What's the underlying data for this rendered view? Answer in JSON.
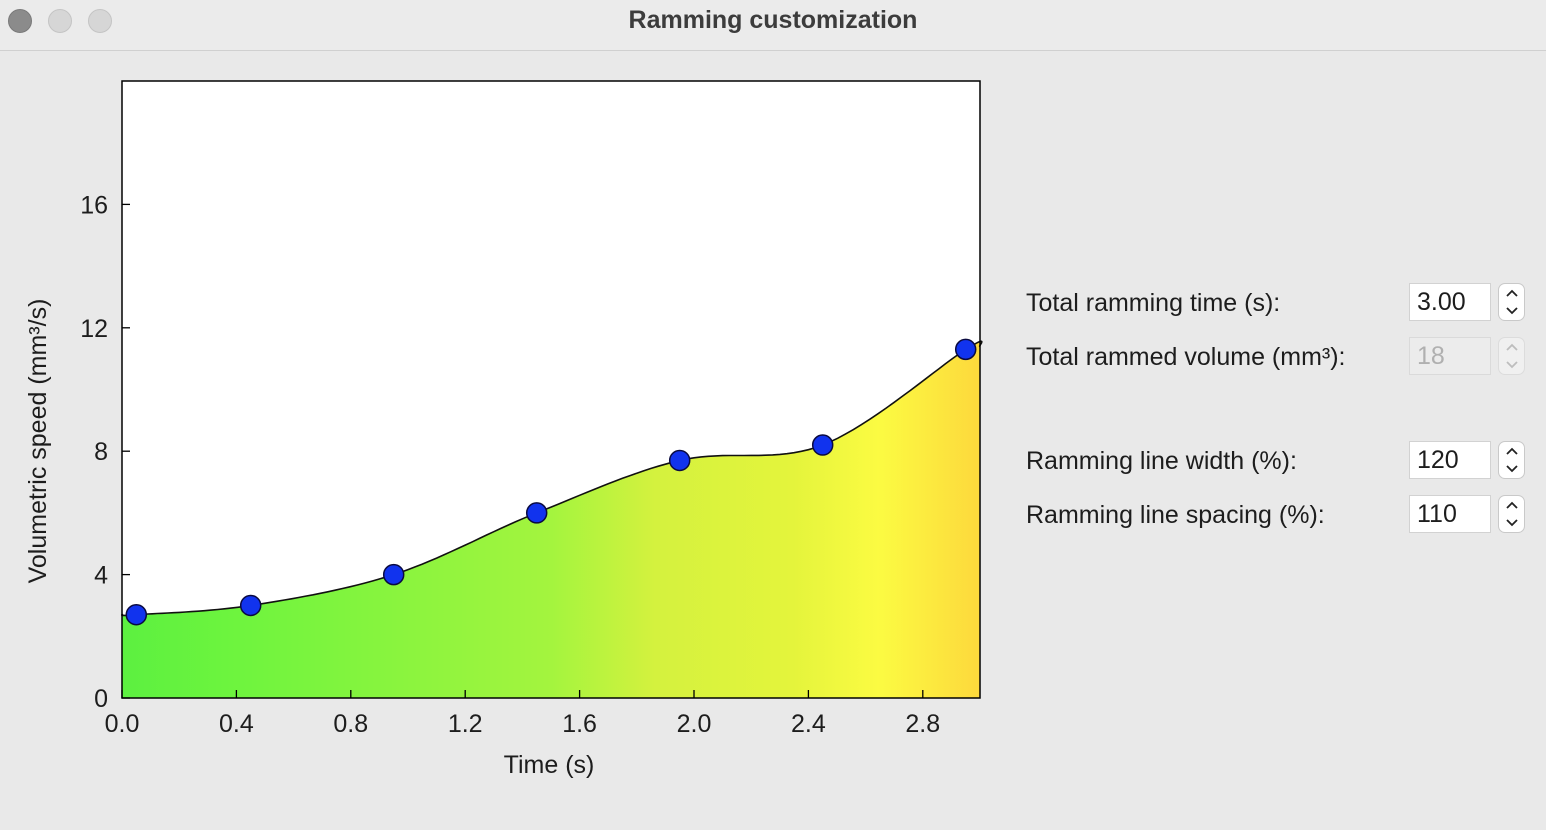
{
  "window": {
    "title": "Ramming customization"
  },
  "chart_data": {
    "type": "area",
    "xlabel": "Time (s)",
    "ylabel": "Volumetric speed (mm³/s)",
    "xlim": [
      0,
      3.0
    ],
    "ylim": [
      0,
      20
    ],
    "x_ticks": [
      "0.0",
      "0.4",
      "0.8",
      "1.2",
      "1.6",
      "2.0",
      "2.4",
      "2.8"
    ],
    "y_ticks": [
      "0",
      "4",
      "8",
      "12",
      "16"
    ],
    "x": [
      0.05,
      0.45,
      0.95,
      1.45,
      1.95,
      2.45,
      2.95
    ],
    "values": [
      2.7,
      3.0,
      4.0,
      6.0,
      7.7,
      8.2,
      11.3
    ],
    "gradient_colors": [
      "#5cf040",
      "#6cf43e",
      "#a4f43e",
      "#d4f23e",
      "#e4f43c",
      "#fbfb42",
      "#fdd83c"
    ]
  },
  "form": {
    "total_time_label": "Total ramming time (s):",
    "total_time_value": "3.00",
    "total_volume_label": "Total rammed volume (mm³):",
    "total_volume_value": "18",
    "line_width_label": "Ramming line width (%):",
    "line_width_value": "120",
    "line_spacing_label": "Ramming line spacing (%):",
    "line_spacing_value": "110"
  }
}
